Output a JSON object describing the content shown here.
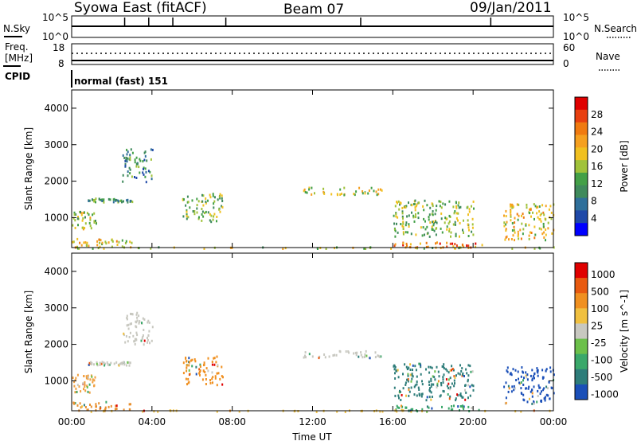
{
  "header": {
    "title": "Syowa East (fitACF)",
    "beam": "Beam 07",
    "date": "09/Jan/2011"
  },
  "status_panels": {
    "nsky_label": "N.Sky",
    "nsky_ticks": [
      "10^5",
      "10^0"
    ],
    "nsearch_label": "N.Search",
    "nsearch_ticks": [
      "10^5",
      "10^0"
    ],
    "freq_label": "Freq.",
    "freq_unit": "[MHz]",
    "freq_ticks": [
      "18",
      "8"
    ],
    "nave_label": "Nave",
    "nave_ticks": [
      "60",
      "0"
    ],
    "cpid_label": "CPID",
    "cpid_value": "normal (fast) 151"
  },
  "chart_data": [
    {
      "type": "heatmap",
      "name": "power-panel",
      "ylabel": "Slant Range [km]",
      "xlabel": "",
      "x_ticks": [
        "00:00",
        "04:00",
        "08:00",
        "12:00",
        "16:00",
        "20:00",
        "00:00"
      ],
      "y_ticks": [
        "1000",
        "2000",
        "3000",
        "4000"
      ],
      "ylim": [
        180,
        4500
      ],
      "xlim_hours": [
        0,
        24
      ],
      "colorbar_label": "Power [dB]",
      "colorbar_ticks": [
        "4",
        "8",
        "12",
        "16",
        "20",
        "24",
        "28"
      ],
      "colorbar_colors": [
        "#0000ff",
        "#1f49a8",
        "#2f6f9a",
        "#3f8a5c",
        "#43a047",
        "#a0c23a",
        "#f0c020",
        "#f5a020",
        "#f07a10",
        "#e84010",
        "#e00000"
      ],
      "echo_regions_hours_km": [
        {
          "t0": 0.0,
          "t1": 3.0,
          "r0": 200,
          "r1": 450,
          "level": 0.6
        },
        {
          "t0": 0.0,
          "t1": 1.2,
          "r0": 700,
          "r1": 1200,
          "level": 0.5
        },
        {
          "t0": 0.8,
          "t1": 3.0,
          "r0": 1450,
          "r1": 1550,
          "level": 0.35
        },
        {
          "t0": 2.5,
          "t1": 4.0,
          "r0": 2000,
          "r1": 2900,
          "level": 0.3
        },
        {
          "t0": 5.5,
          "t1": 7.5,
          "r0": 900,
          "r1": 1700,
          "level": 0.45
        },
        {
          "t0": 11.5,
          "t1": 15.5,
          "r0": 1650,
          "r1": 1850,
          "level": 0.55
        },
        {
          "t0": 16.0,
          "t1": 20.5,
          "r0": 200,
          "r1": 350,
          "level": 0.8
        },
        {
          "t0": 16.0,
          "t1": 20.0,
          "r0": 500,
          "r1": 1500,
          "level": 0.45
        },
        {
          "t0": 21.5,
          "t1": 24.0,
          "r0": 400,
          "r1": 1400,
          "level": 0.6
        },
        {
          "t0": 0.0,
          "t1": 24.0,
          "r0": 180,
          "r1": 220,
          "level": 0.5
        }
      ]
    },
    {
      "type": "heatmap",
      "name": "velocity-panel",
      "ylabel": "Slant Range [km]",
      "xlabel": "Time UT",
      "x_ticks": [
        "00:00",
        "04:00",
        "08:00",
        "12:00",
        "16:00",
        "20:00",
        "00:00"
      ],
      "y_ticks": [
        "1000",
        "2000",
        "3000",
        "4000"
      ],
      "ylim": [
        180,
        4500
      ],
      "xlim_hours": [
        0,
        24
      ],
      "colorbar_label": "Velocity [m s^-1]",
      "colorbar_ticks": [
        "1000",
        "500",
        "100",
        "25",
        "-25",
        "-100",
        "-500",
        "-1000"
      ],
      "colorbar_colors": [
        "#1a4fb8",
        "#2e7d7a",
        "#3aa86a",
        "#6cc04a",
        "#c8c8c0",
        "#f0c040",
        "#f09020",
        "#e85a10",
        "#e00000"
      ],
      "echo_regions_hours_km": [
        {
          "t0": 0.0,
          "t1": 3.0,
          "r0": 200,
          "r1": 450,
          "color": "#e89030"
        },
        {
          "t0": 0.0,
          "t1": 1.2,
          "r0": 700,
          "r1": 1200,
          "color": "#f0a040"
        },
        {
          "t0": 0.8,
          "t1": 3.0,
          "r0": 1450,
          "r1": 1550,
          "color": "#c8c8c0"
        },
        {
          "t0": 2.5,
          "t1": 4.0,
          "r0": 2000,
          "r1": 2900,
          "color": "#c8c8c0"
        },
        {
          "t0": 5.5,
          "t1": 7.5,
          "r0": 900,
          "r1": 1700,
          "color": "#f09020"
        },
        {
          "t0": 11.5,
          "t1": 15.5,
          "r0": 1650,
          "r1": 1850,
          "color": "#c8c8c0"
        },
        {
          "t0": 16.0,
          "t1": 20.5,
          "r0": 200,
          "r1": 350,
          "color": "#3aa86a"
        },
        {
          "t0": 16.0,
          "t1": 20.0,
          "r0": 500,
          "r1": 1500,
          "color": "#2e7d7a"
        },
        {
          "t0": 21.5,
          "t1": 24.0,
          "r0": 400,
          "r1": 1400,
          "color": "#1a4fb8"
        },
        {
          "t0": 0.0,
          "t1": 24.0,
          "r0": 180,
          "r1": 220,
          "color": "#f0c040"
        }
      ]
    }
  ]
}
